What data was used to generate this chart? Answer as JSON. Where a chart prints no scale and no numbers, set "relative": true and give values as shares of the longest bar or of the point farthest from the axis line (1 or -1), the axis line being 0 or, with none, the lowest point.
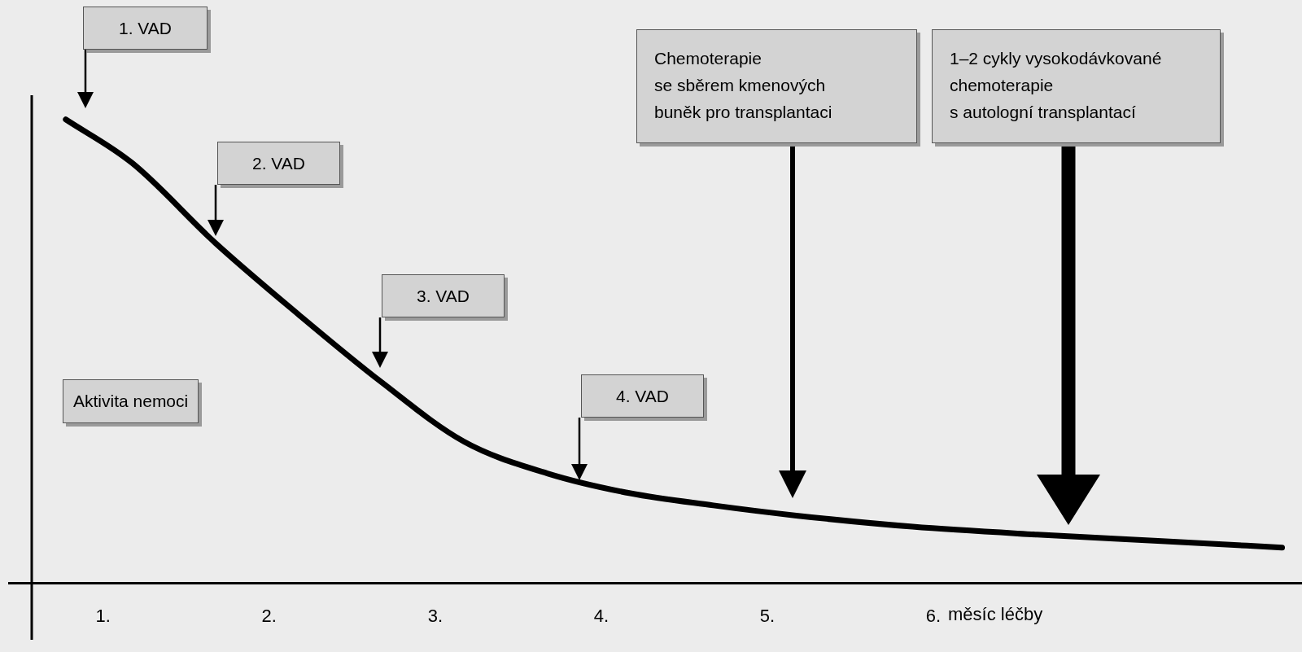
{
  "chart_data": {
    "type": "line",
    "relative": true,
    "x": [
      0.775,
      1.175,
      1.675,
      2.175,
      2.675,
      3.175,
      3.675,
      4.175,
      4.675,
      5.175,
      5.875,
      6.625,
      7.375,
      8.1
    ],
    "series": [
      {
        "color": "#000000",
        "values": [
          1.0,
          0.906,
          0.734,
          0.58,
          0.434,
          0.305,
          0.237,
          0.194,
          0.168,
          0.146,
          0.122,
          0.105,
          0.091,
          0.077
        ]
      }
    ],
    "xlim": [
      0.57,
      8.22
    ],
    "xticks": [
      {
        "value": 1,
        "label": "1."
      },
      {
        "value": 2,
        "label": "2."
      },
      {
        "value": 3,
        "label": "3."
      },
      {
        "value": 4,
        "label": "4."
      },
      {
        "value": 5,
        "label": "5."
      },
      {
        "value": 6,
        "label": "6."
      }
    ],
    "xlabel": "měsíc léčby",
    "grid": false,
    "legend": false,
    "marker": "none",
    "line_style": "solid",
    "annotations": [
      "1. VAD",
      "2. VAD",
      "3. VAD",
      "4. VAD",
      "Chemoterapie\nse sběrem kmenových\nbuněk pro transplantaci",
      "1–2 cykly vysokodávkované\nchemoterapie\ns autologní transplantací",
      "Aktivita nemoci"
    ]
  }
}
